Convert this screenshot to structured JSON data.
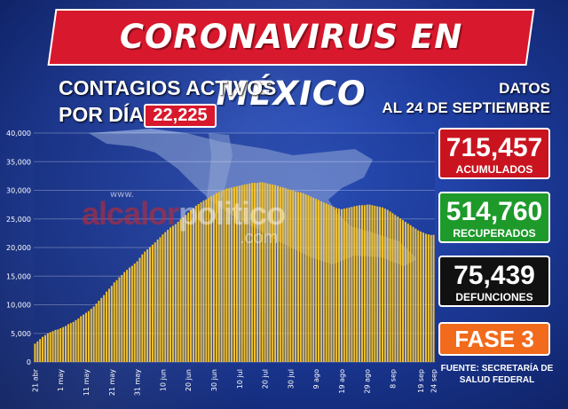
{
  "title": "CORONAVIRUS EN MÉXICO",
  "subtitle_line1": "CONTAGIOS ACTIVOS",
  "subtitle_line2": "POR DÍA",
  "active_today": "22,225",
  "date_line1": "DATOS",
  "date_line2": "AL 24 DE SEPTIEMBRE",
  "stats": {
    "acumulados": {
      "value": "715,457",
      "label": "ACUMULADOS",
      "color": "#c9141f"
    },
    "recuperados": {
      "value": "514,760",
      "label": "RECUPERADOS",
      "color": "#1e9a2b"
    },
    "defunciones": {
      "value": "75,439",
      "label": "DEFUNCIONES",
      "color": "#111111"
    }
  },
  "fase": "FASE  3",
  "fuente_line1": "FUENTE: SECRETARÍA DE",
  "fuente_line2": "SALUD FEDERAL",
  "watermark": {
    "www": "www.",
    "part1": "alcalor",
    "part2": "politico",
    "com": ".com"
  },
  "colors": {
    "bar": "#f1c232",
    "banner": "#d8182c",
    "background": "#1c3a9a",
    "fase": "#f26a1b"
  },
  "chart_data": {
    "type": "bar",
    "title": "CONTAGIOS ACTIVOS POR DÍA",
    "xlabel": "",
    "ylabel": "",
    "ylim": [
      0,
      40000
    ],
    "yticks": [
      0,
      5000,
      10000,
      15000,
      20000,
      25000,
      30000,
      35000,
      40000
    ],
    "ytick_labels": [
      "0",
      "5,000",
      "10,000",
      "15,000",
      "20,000",
      "25,000",
      "30,000",
      "35,000",
      "40,000"
    ],
    "xtick_labels": [
      "21 abr",
      "1 may",
      "11 may",
      "21 may",
      "31 may",
      "10 jun",
      "20 jun",
      "30 jun",
      "10 jul",
      "20 jul",
      "30 jul",
      "9 ago",
      "19 ago",
      "29 ago",
      "8 sep",
      "19 sep",
      "24 sep"
    ],
    "xtick_days": [
      0,
      10,
      20,
      30,
      40,
      50,
      60,
      70,
      80,
      90,
      100,
      110,
      120,
      130,
      140,
      151,
      156
    ],
    "start_date": "21 abr",
    "values": [
      3200,
      3600,
      4000,
      4400,
      4700,
      5000,
      5200,
      5400,
      5600,
      5700,
      5900,
      6100,
      6300,
      6600,
      6800,
      7000,
      7300,
      7600,
      8000,
      8300,
      8600,
      8900,
      9300,
      9700,
      10200,
      10700,
      11200,
      11700,
      12300,
      12800,
      13300,
      13900,
      14300,
      14800,
      15200,
      15700,
      16100,
      16500,
      16800,
      17200,
      17600,
      18200,
      18800,
      19300,
      19700,
      20100,
      20500,
      20900,
      21400,
      21800,
      22300,
      22700,
      23100,
      23500,
      23800,
      24100,
      24500,
      24900,
      25300,
      25700,
      26100,
      26500,
      26900,
      27300,
      27600,
      27900,
      28200,
      28400,
      28700,
      29000,
      29200,
      29500,
      29700,
      29900,
      30100,
      30300,
      30400,
      30500,
      30600,
      30700,
      30800,
      30900,
      31000,
      31100,
      31200,
      31300,
      31300,
      31300,
      31400,
      31400,
      31300,
      31200,
      31100,
      31000,
      30900,
      30800,
      30600,
      30500,
      30400,
      30200,
      30100,
      30000,
      29800,
      29700,
      29600,
      29500,
      29300,
      29100,
      28900,
      28700,
      28500,
      28300,
      28100,
      27900,
      27700,
      27500,
      27300,
      27100,
      26900,
      26800,
      26700,
      26800,
      26900,
      27000,
      27100,
      27200,
      27300,
      27400,
      27400,
      27400,
      27500,
      27500,
      27400,
      27300,
      27200,
      27100,
      27000,
      26800,
      26600,
      26300,
      26000,
      25700,
      25400,
      25100,
      24800,
      24500,
      24200,
      23900,
      23600,
      23300,
      23000,
      22800,
      22600,
      22400,
      22300,
      22200,
      22225
    ]
  }
}
